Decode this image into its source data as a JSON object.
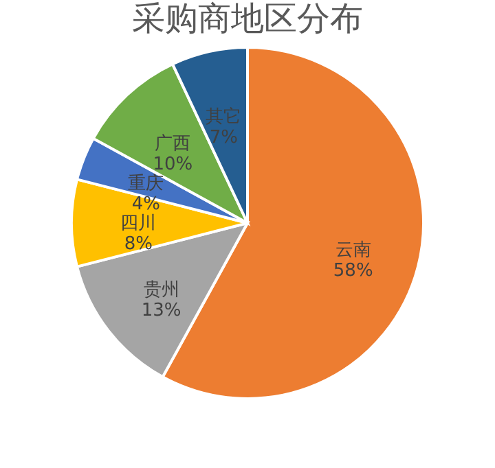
{
  "chart_data": {
    "type": "pie",
    "title": "采购商地区分布",
    "categories": [
      "云南",
      "贵州",
      "四川",
      "重庆",
      "广西",
      "其它"
    ],
    "values": [
      58,
      13,
      8,
      4,
      10,
      7
    ],
    "value_labels": [
      "58%",
      "13%",
      "8%",
      "4%",
      "10%",
      "7%"
    ],
    "colors": [
      "#ed7d31",
      "#a5a5a5",
      "#ffc000",
      "#4472c4",
      "#70ad47",
      "#255e91"
    ],
    "legend": false
  }
}
